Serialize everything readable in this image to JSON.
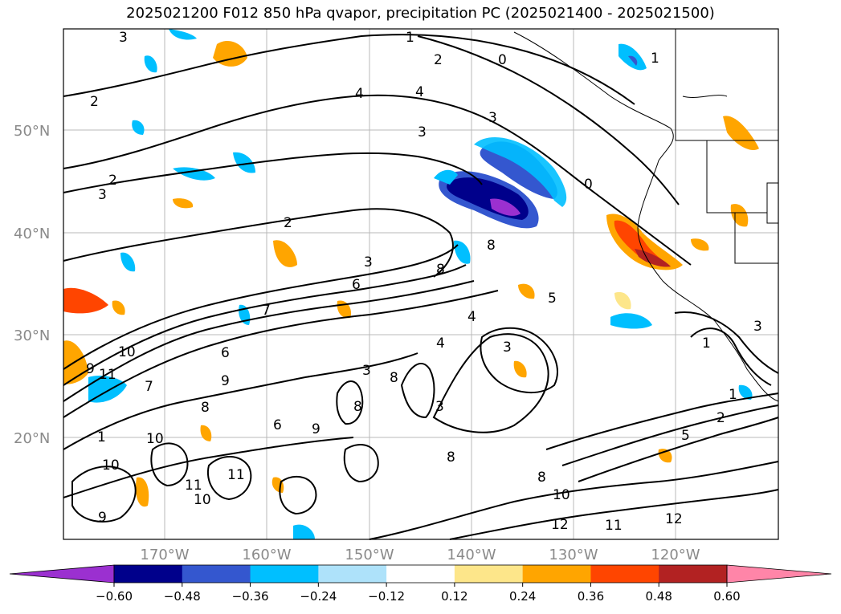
{
  "title": "2025021200 F012 850 hPa qvapor, precipitation PC (2025021400 - 2025021500)",
  "map": {
    "lat_labels": [
      "50°N",
      "40°N",
      "30°N",
      "20°N"
    ],
    "lon_labels": [
      "170°W",
      "160°W",
      "150°W",
      "140°W",
      "130°W",
      "120°W"
    ],
    "gridlines": true,
    "contour_field": "850 hPa qvapor",
    "contour_labels": [
      "3",
      "2",
      "1",
      "0",
      "2",
      "1",
      "2",
      "4",
      "4",
      "3",
      "3",
      "3",
      "2",
      "3",
      "8",
      "8",
      "6",
      "7",
      "4",
      "3",
      "5",
      "4",
      "3",
      "10",
      "11",
      "9",
      "9",
      "8",
      "6",
      "6",
      "8",
      "8",
      "7",
      "3",
      "8",
      "9",
      "10",
      "11",
      "10",
      "11",
      "10",
      "12",
      "11",
      "12",
      "9",
      "10",
      "8",
      "2",
      "1",
      "1",
      "5",
      "3",
      "1",
      "0"
    ],
    "shaded_field": "precipitation PC",
    "coastline": true,
    "state_borders": true
  },
  "colorbar": {
    "ticks": [
      "−0.60",
      "−0.48",
      "−0.36",
      "−0.24",
      "−0.12",
      "0.12",
      "0.24",
      "0.36",
      "0.48",
      "0.60"
    ],
    "bins": [
      {
        "color": "#9b30d0"
      },
      {
        "color": "#00008b"
      },
      {
        "color": "#3457cf"
      },
      {
        "color": "#00bfff"
      },
      {
        "color": "#aee2fa"
      },
      {
        "color": "#ffffff"
      },
      {
        "color": "#fde68a"
      },
      {
        "color": "#ffa500"
      },
      {
        "color": "#ff4500"
      },
      {
        "color": "#b22222"
      },
      {
        "color": "#ff85a8"
      }
    ],
    "extend": "both"
  }
}
